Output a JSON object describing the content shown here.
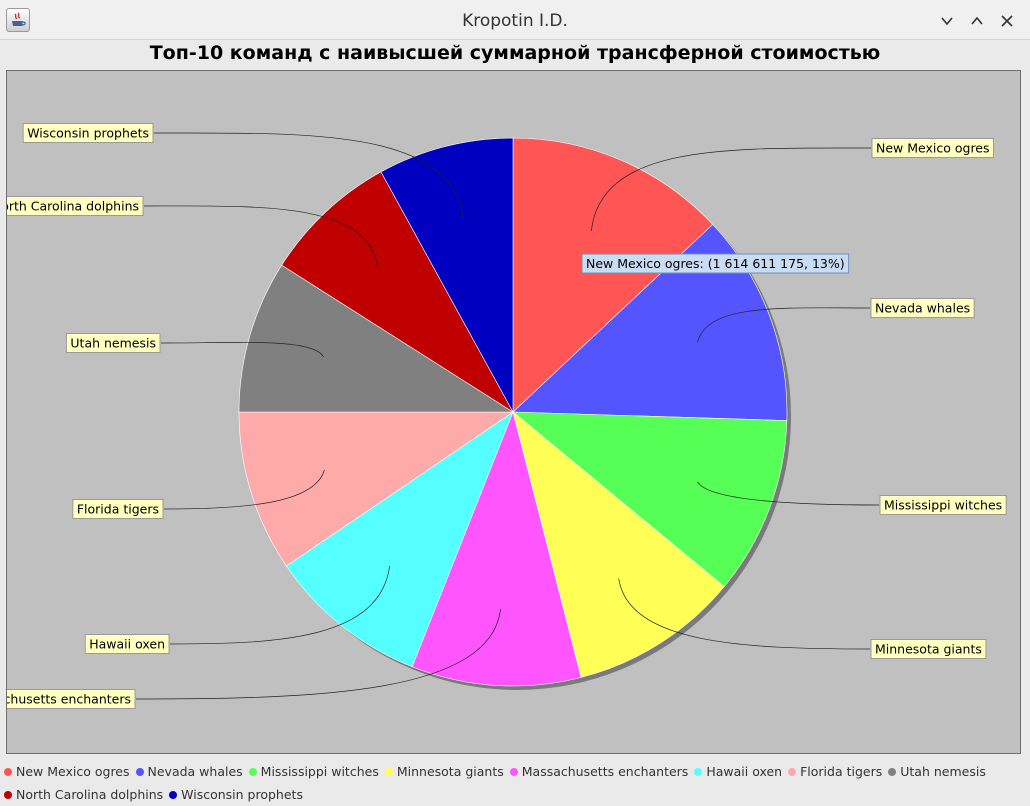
{
  "window": {
    "title": "Kropotin I.D."
  },
  "chart_data": {
    "type": "pie",
    "title": "Топ-10 команд с наивысшей суммарной трансферной стоимостью",
    "slices": [
      {
        "name": "New Mexico ogres",
        "percent": 13,
        "color": "#ff5555"
      },
      {
        "name": "Nevada whales",
        "percent": 12.5,
        "color": "#5555ff"
      },
      {
        "name": "Mississippi witches",
        "percent": 10.5,
        "color": "#55ff55"
      },
      {
        "name": "Minnesota giants",
        "percent": 10,
        "color": "#ffff55"
      },
      {
        "name": "Massachusetts enchanters",
        "percent": 10,
        "color": "#ff55ff"
      },
      {
        "name": "Hawaii oxen",
        "percent": 9.5,
        "color": "#55ffff"
      },
      {
        "name": "Florida tigers",
        "percent": 9.5,
        "color": "#ffaaaa"
      },
      {
        "name": "Utah nemesis",
        "percent": 9,
        "color": "#808080"
      },
      {
        "name": "North Carolina dolphins",
        "percent": 8,
        "color": "#c00000"
      },
      {
        "name": "Wisconsin prophets",
        "percent": 8,
        "color": "#0000c0"
      }
    ],
    "tooltip": {
      "slice": "New Mexico ogres",
      "text": "New Mexico ogres: (1 614 611 175, 13%)"
    },
    "legend_position": "bottom",
    "plot_background": "#c0c0c0"
  }
}
